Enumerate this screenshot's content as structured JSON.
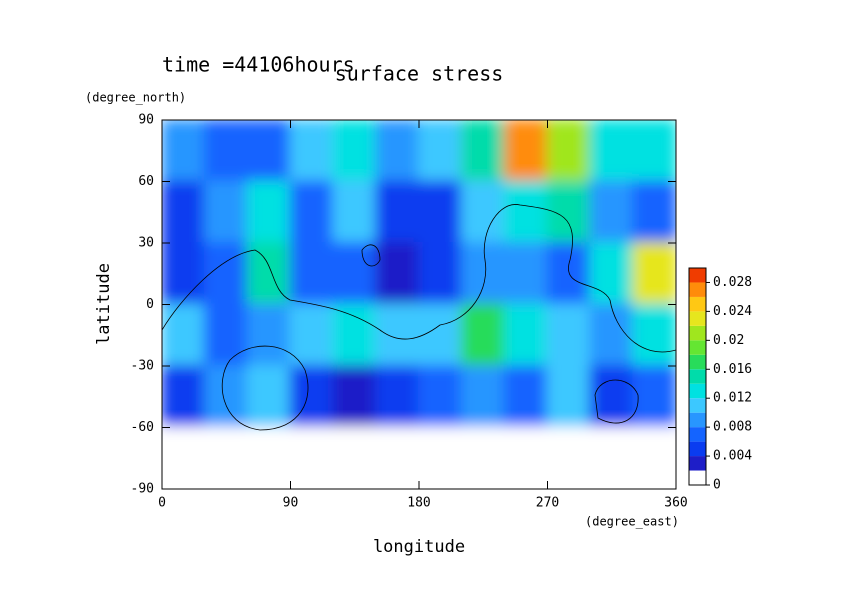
{
  "chart_data": {
    "type": "contour",
    "title": "surface stress",
    "subtitle": "time =44106hours",
    "ylabel": "latitude",
    "yunit": "(degree_north)",
    "xlabel": "longitude",
    "xunit": "(degree_east)",
    "xlim": [
      0,
      360
    ],
    "xticks": [
      0,
      90,
      180,
      270,
      360
    ],
    "ylim": [
      -90,
      90
    ],
    "yticks": [
      -90,
      -60,
      -30,
      0,
      30,
      60,
      90
    ],
    "x": [
      15,
      45,
      75,
      105,
      135,
      165,
      195,
      225,
      255,
      285,
      315,
      345
    ],
    "y": [
      75,
      45,
      15,
      -15,
      -45,
      -75
    ],
    "z": [
      [
        0.008,
        0.006,
        0.006,
        0.01,
        0.012,
        0.008,
        0.01,
        0.014,
        0.026,
        0.02,
        0.012,
        0.012
      ],
      [
        0.004,
        0.008,
        0.012,
        0.006,
        0.01,
        0.004,
        0.004,
        0.01,
        0.012,
        0.014,
        0.008,
        0.006
      ],
      [
        0.004,
        0.006,
        0.014,
        0.006,
        0.006,
        0.002,
        0.004,
        0.008,
        0.008,
        0.006,
        0.012,
        0.022
      ],
      [
        0.01,
        0.006,
        0.008,
        0.01,
        0.012,
        0.01,
        0.01,
        0.016,
        0.012,
        0.01,
        0.008,
        0.012
      ],
      [
        0.004,
        0.008,
        0.01,
        0.004,
        0.002,
        0.004,
        0.006,
        0.008,
        0.006,
        0.01,
        0.004,
        0.006
      ],
      [
        0,
        0,
        0,
        0,
        0,
        0,
        0,
        0,
        0,
        0,
        0,
        0
      ]
    ],
    "zlim": [
      0,
      0.03
    ],
    "zticks": [
      0,
      0.004,
      0.008,
      0.012,
      0.016,
      0.02,
      0.024,
      0.028
    ],
    "colors": [
      "#ffffff",
      "#1e1ec8",
      "#0a3cf0",
      "#1464ff",
      "#2896ff",
      "#3cc8ff",
      "#00e1e1",
      "#00dcaa",
      "#28dc5a",
      "#64e632",
      "#a0e61e",
      "#e6e61e",
      "#ffc814",
      "#ff8c0a",
      "#f03c00"
    ]
  }
}
